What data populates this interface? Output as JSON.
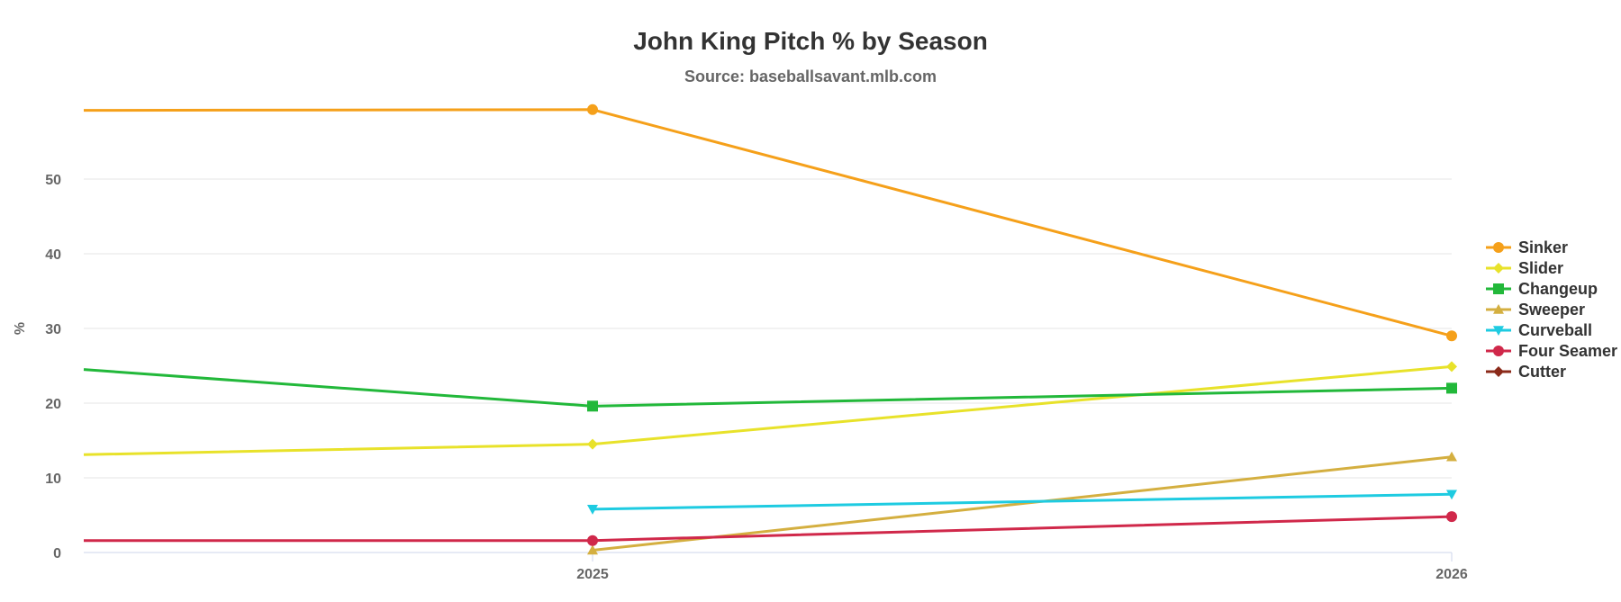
{
  "chart_data": {
    "type": "line",
    "title": "John King Pitch % by Season",
    "subtitle": "Source: baseballsavant.mlb.com",
    "xlabel": "",
    "ylabel": "%",
    "categories": [
      "2025",
      "2026"
    ],
    "yticks": [
      0,
      10,
      20,
      30,
      40,
      50
    ],
    "ylim": [
      0,
      59
    ],
    "grid": true,
    "legend": "right",
    "series": [
      {
        "name": "Sinker",
        "color": "#f5a01a",
        "marker": "circle",
        "values": [
          59.3,
          29.0
        ],
        "lead_in": 59.2
      },
      {
        "name": "Slider",
        "color": "#e8e22a",
        "marker": "diamond",
        "values": [
          14.5,
          24.9
        ],
        "lead_in": 13.1
      },
      {
        "name": "Changeup",
        "color": "#22b83a",
        "marker": "square",
        "values": [
          19.6,
          22.0
        ],
        "lead_in": 24.5
      },
      {
        "name": "Sweeper",
        "color": "#d4af40",
        "marker": "triangle",
        "values": [
          0.3,
          12.8
        ]
      },
      {
        "name": "Curveball",
        "color": "#1ecbe1",
        "marker": "triangle-down",
        "values": [
          5.8,
          7.8
        ]
      },
      {
        "name": "Four Seamer",
        "color": "#d0284a",
        "marker": "circle",
        "values": [
          1.6,
          4.8
        ],
        "lead_in": 1.6
      },
      {
        "name": "Cutter",
        "color": "#8b2a1a",
        "marker": "diamond",
        "values": [
          null,
          null
        ]
      }
    ]
  }
}
